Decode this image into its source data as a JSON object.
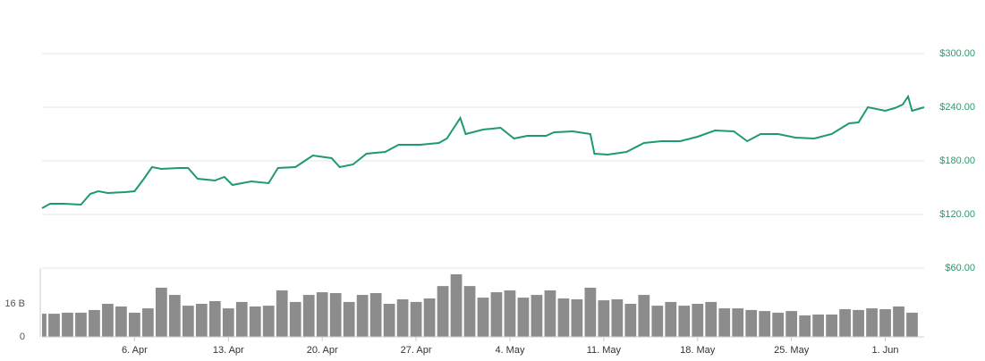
{
  "chart_data": [
    {
      "type": "line",
      "color": "#1f9a6d",
      "x": [
        -0.9,
        -0.3,
        0.7,
        2,
        2.7,
        3.3,
        4,
        5.3,
        6,
        6.7,
        7.3,
        8,
        9.3,
        10,
        10.7,
        12,
        12.7,
        13.3,
        14.7,
        16,
        16.7,
        18,
        18.7,
        19.3,
        20.7,
        21.3,
        22.3,
        23.3,
        24.7,
        25.7,
        27.3,
        28.7,
        29.3,
        30.3,
        30.7,
        32,
        33.3,
        34.3,
        35.3,
        36.7,
        37.3,
        38.7,
        40,
        40.3,
        41.3,
        42.7,
        44,
        45.3,
        46.7,
        48,
        49.3,
        50.7,
        51.7,
        52.7,
        54,
        55.3,
        56.7,
        58,
        59.3,
        60,
        60.7,
        62,
        62.7,
        63.3,
        63.7,
        64,
        64.9
      ],
      "values": [
        127,
        132,
        132,
        131,
        143,
        146,
        144,
        145,
        146,
        160,
        173,
        171,
        172,
        172,
        160,
        158,
        162,
        153,
        157,
        155,
        172,
        173,
        180,
        186,
        183,
        173,
        176,
        188,
        190,
        198,
        198,
        200,
        205,
        228,
        210,
        215,
        217,
        205,
        208,
        208,
        212,
        213,
        210,
        188,
        187,
        190,
        200,
        202,
        202,
        207,
        214,
        213,
        202,
        210,
        210,
        206,
        205,
        210,
        222,
        223,
        240,
        236,
        239,
        243,
        252,
        236,
        240
      ],
      "xlim": [
        -0.9,
        64.9
      ],
      "ylim": [
        60,
        320
      ],
      "yticks": [
        {
          "value": 60,
          "label": "$60.00"
        },
        {
          "value": 120,
          "label": "$120.00"
        },
        {
          "value": 180,
          "label": "$180.00"
        },
        {
          "value": 240,
          "label": "$240.00"
        },
        {
          "value": 300,
          "label": "$300.00"
        }
      ],
      "grid": true
    },
    {
      "type": "bar",
      "color": "#8c8c8c",
      "x": [
        -1,
        0,
        1,
        2,
        3,
        4,
        5,
        6,
        7,
        8,
        9,
        10,
        11,
        12,
        13,
        14,
        15,
        16,
        17,
        18,
        19,
        20,
        21,
        22,
        23,
        24,
        25,
        26,
        27,
        28,
        29,
        30,
        31,
        32,
        33,
        34,
        35,
        36,
        37,
        38,
        39,
        40,
        41,
        42,
        43,
        44,
        45,
        46,
        47,
        48,
        49,
        50,
        51,
        52,
        53,
        54,
        55,
        56,
        57,
        58,
        59,
        60,
        61,
        62,
        63,
        64
      ],
      "values": [
        11.2,
        11.2,
        11.7,
        11.7,
        13.0,
        16.0,
        14.7,
        11.7,
        13.8,
        23.8,
        20.3,
        15.1,
        16.0,
        17.3,
        13.8,
        16.9,
        14.7,
        15.1,
        22.5,
        16.9,
        20.3,
        21.6,
        21.2,
        16.9,
        20.3,
        21.2,
        16.0,
        18.2,
        16.9,
        18.6,
        24.6,
        30.3,
        24.6,
        19.0,
        21.6,
        22.5,
        19.0,
        20.3,
        22.5,
        18.6,
        18.2,
        23.8,
        17.7,
        18.2,
        16.0,
        20.3,
        15.1,
        16.9,
        15.1,
        16.0,
        16.9,
        13.8,
        13.8,
        13.0,
        12.5,
        11.7,
        12.5,
        10.4,
        10.8,
        10.8,
        13.4,
        13.0,
        13.8,
        13.4,
        14.7,
        11.7
      ],
      "xlim": [
        -0.9,
        64.9
      ],
      "ylim": [
        0,
        33.3
      ],
      "yticks": [
        0,
        {
          "value": 16,
          "label": "16 B"
        }
      ],
      "xticks": [
        {
          "value": 6,
          "label": "6. Apr"
        },
        {
          "value": 13,
          "label": "13. Apr"
        },
        {
          "value": 20,
          "label": "20. Apr"
        },
        {
          "value": 27,
          "label": "27. Apr"
        },
        {
          "value": 34,
          "label": "4. May"
        },
        {
          "value": 41,
          "label": "11. May"
        },
        {
          "value": 48,
          "label": "18. May"
        },
        {
          "value": 55,
          "label": "25. May"
        },
        {
          "value": 62,
          "label": "1. Jun"
        }
      ]
    }
  ]
}
